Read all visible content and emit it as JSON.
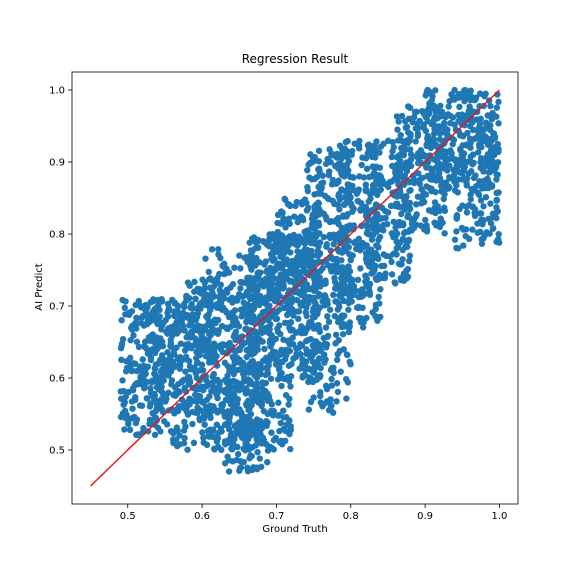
{
  "chart_data": {
    "type": "scatter",
    "title": "Regression Result",
    "xlabel": "Ground Truth",
    "ylabel": "AI Predict",
    "xlim": [
      0.425,
      1.025
    ],
    "ylim": [
      0.425,
      1.025
    ],
    "xticks": [
      0.5,
      0.6,
      0.7,
      0.8,
      0.9,
      1.0
    ],
    "yticks": [
      0.5,
      0.6,
      0.7,
      0.8,
      0.9,
      1.0
    ],
    "xtick_labels": [
      "0.5",
      "0.6",
      "0.7",
      "0.8",
      "0.9",
      "1.0"
    ],
    "ytick_labels": [
      "0.5",
      "0.6",
      "0.7",
      "0.8",
      "0.9",
      "1.0"
    ],
    "grid": false,
    "point_color": "#1f77b4",
    "line_color": "#e31a1c",
    "reference_line": {
      "x": [
        0.45,
        1.0
      ],
      "y": [
        0.45,
        1.0
      ]
    },
    "clusters": [
      {
        "x_range": [
          0.49,
          0.56
        ],
        "y_range": [
          0.52,
          0.71
        ],
        "count": 220
      },
      {
        "x_range": [
          0.52,
          0.6
        ],
        "y_range": [
          0.55,
          0.71
        ],
        "count": 160
      },
      {
        "x_range": [
          0.56,
          0.65
        ],
        "y_range": [
          0.5,
          0.72
        ],
        "count": 220
      },
      {
        "x_range": [
          0.6,
          0.68
        ],
        "y_range": [
          0.52,
          0.78
        ],
        "count": 220
      },
      {
        "x_range": [
          0.63,
          0.69
        ],
        "y_range": [
          0.47,
          0.6
        ],
        "count": 140
      },
      {
        "x_range": [
          0.66,
          0.72
        ],
        "y_range": [
          0.5,
          0.8
        ],
        "count": 260
      },
      {
        "x_range": [
          0.7,
          0.76
        ],
        "y_range": [
          0.6,
          0.85
        ],
        "count": 260
      },
      {
        "x_range": [
          0.74,
          0.8
        ],
        "y_range": [
          0.55,
          0.92
        ],
        "count": 240
      },
      {
        "x_range": [
          0.78,
          0.84
        ],
        "y_range": [
          0.67,
          0.93
        ],
        "count": 220
      },
      {
        "x_range": [
          0.82,
          0.88
        ],
        "y_range": [
          0.73,
          0.93
        ],
        "count": 200
      },
      {
        "x_range": [
          0.86,
          0.93
        ],
        "y_range": [
          0.8,
          0.98
        ],
        "count": 200
      },
      {
        "x_range": [
          0.9,
          1.0
        ],
        "y_range": [
          0.86,
          1.0
        ],
        "count": 260
      },
      {
        "x_range": [
          0.94,
          1.0
        ],
        "y_range": [
          0.78,
          0.95
        ],
        "count": 120
      },
      {
        "x_range": [
          0.69,
          0.8
        ],
        "y_range": [
          0.7,
          0.8
        ],
        "count": 160
      },
      {
        "x_range": [
          0.58,
          0.7
        ],
        "y_range": [
          0.62,
          0.74
        ],
        "count": 160
      }
    ]
  }
}
